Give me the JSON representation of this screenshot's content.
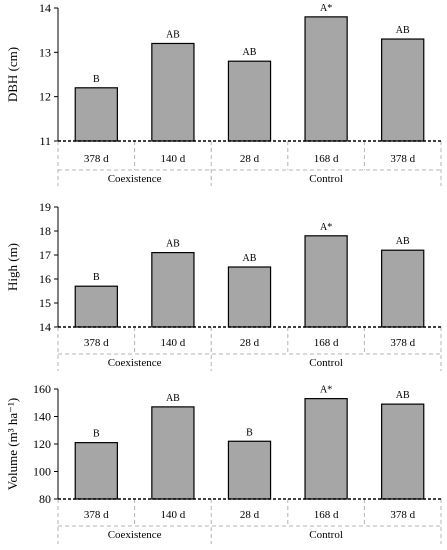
{
  "chart_data": [
    {
      "type": "bar",
      "categories": [
        "378 d",
        "140 d",
        "28 d",
        "168 d",
        "378 d"
      ],
      "groups": [
        {
          "label": "Coexistence",
          "categories": [
            0,
            1
          ]
        },
        {
          "label": "Control",
          "categories": [
            2,
            3,
            4
          ]
        }
      ],
      "values": [
        12.2,
        13.2,
        12.8,
        13.8,
        13.3
      ],
      "bar_labels": [
        "B",
        "AB",
        "AB",
        "A*",
        "AB"
      ],
      "ylabel": "DBH (cm)",
      "ylim": [
        11,
        14
      ],
      "yticks": [
        11,
        12,
        13,
        14
      ],
      "grid": false,
      "bar_color": "#a6a6a6"
    },
    {
      "type": "bar",
      "categories": [
        "378 d",
        "140 d",
        "28 d",
        "168 d",
        "378 d"
      ],
      "groups": [
        {
          "label": "Coexistence",
          "categories": [
            0,
            1
          ]
        },
        {
          "label": "Control",
          "categories": [
            2,
            3,
            4
          ]
        }
      ],
      "values": [
        15.7,
        17.1,
        16.5,
        17.8,
        17.2
      ],
      "bar_labels": [
        "B",
        "AB",
        "AB",
        "A*",
        "AB"
      ],
      "ylabel": "High (m)",
      "ylim": [
        14,
        19
      ],
      "yticks": [
        14,
        15,
        16,
        17,
        18,
        19
      ],
      "grid": false,
      "bar_color": "#a6a6a6"
    },
    {
      "type": "bar",
      "categories": [
        "378 d",
        "140 d",
        "28 d",
        "168 d",
        "378 d"
      ],
      "groups": [
        {
          "label": "Coexistence",
          "categories": [
            0,
            1
          ]
        },
        {
          "label": "Control",
          "categories": [
            2,
            3,
            4
          ]
        }
      ],
      "values": [
        121,
        147,
        122,
        153,
        149
      ],
      "bar_labels": [
        "B",
        "AB",
        "B",
        "A*",
        "AB"
      ],
      "ylabel": "Volume (m³ ha⁻¹)",
      "ylim": [
        80,
        160
      ],
      "yticks": [
        80,
        100,
        120,
        140,
        160
      ],
      "grid": false,
      "bar_color": "#a6a6a6"
    }
  ]
}
